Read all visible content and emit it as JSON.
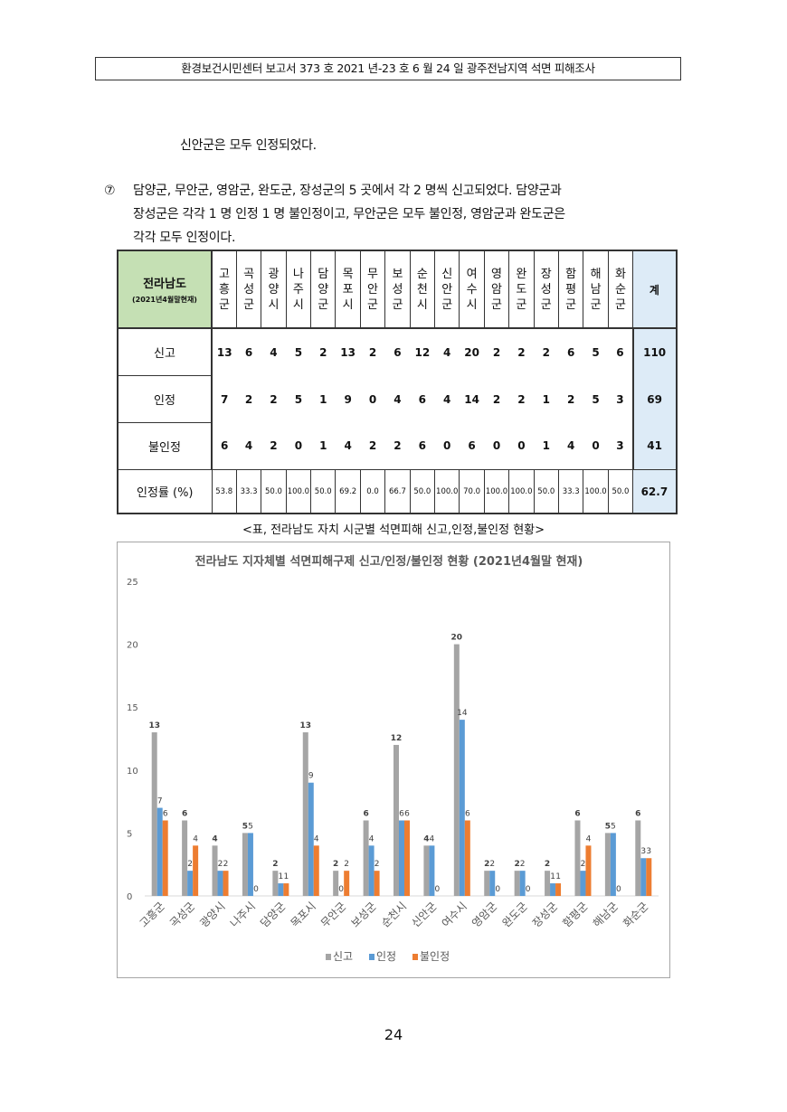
{
  "header": "환경보건시민센터 보고서 373 호 2021 년-23 호 6 월 24 일 광주전남지역 석면 피해조사",
  "intro_line": "신안군은 모두 인정되었다.",
  "paragraph": {
    "number": "⑦",
    "lines": [
      "담양군, 무안군, 영암군, 완도군, 장성군의 5 곳에서 각 2 명씩 신고되었다. 담양군과",
      "장성군은 각각 1 명 인정 1 명 불인정이고, 무안군은 모두 불인정, 영암군과 완도군은",
      "각각 모두 인정이다."
    ]
  },
  "table": {
    "corner_title": "전라남도",
    "corner_sub": "(2021년4월말현재)",
    "columns": [
      [
        "고",
        "흥",
        "군"
      ],
      [
        "곡",
        "성",
        "군"
      ],
      [
        "광",
        "양",
        "시"
      ],
      [
        "나",
        "주",
        "시"
      ],
      [
        "담",
        "양",
        "군"
      ],
      [
        "목",
        "포",
        "시"
      ],
      [
        "무",
        "안",
        "군"
      ],
      [
        "보",
        "성",
        "군"
      ],
      [
        "순",
        "천",
        "시"
      ],
      [
        "신",
        "안",
        "군"
      ],
      [
        "여",
        "수",
        "시"
      ],
      [
        "영",
        "암",
        "군"
      ],
      [
        "완",
        "도",
        "군"
      ],
      [
        "장",
        "성",
        "군"
      ],
      [
        "함",
        "평",
        "군"
      ],
      [
        "해",
        "남",
        "군"
      ],
      [
        "화",
        "순",
        "군"
      ]
    ],
    "total_label": "계",
    "rows": [
      {
        "label": "신고",
        "values": [
          "13",
          "6",
          "4",
          "5",
          "2",
          "13",
          "2",
          "6",
          "12",
          "4",
          "20",
          "2",
          "2",
          "2",
          "6",
          "5",
          "6"
        ],
        "total": "110"
      },
      {
        "label": "인정",
        "values": [
          "7",
          "2",
          "2",
          "5",
          "1",
          "9",
          "0",
          "4",
          "6",
          "4",
          "14",
          "2",
          "2",
          "1",
          "2",
          "5",
          "3"
        ],
        "total": "69"
      },
      {
        "label": "불인정",
        "values": [
          "6",
          "4",
          "2",
          "0",
          "1",
          "4",
          "2",
          "2",
          "6",
          "0",
          "6",
          "0",
          "0",
          "1",
          "4",
          "0",
          "3"
        ],
        "total": "41"
      },
      {
        "label": "인정률 (%)",
        "values": [
          "53.8",
          "33.3",
          "50.0",
          "100.0",
          "50.0",
          "69.2",
          "0.0",
          "66.7",
          "50.0",
          "100.0",
          "70.0",
          "100.0",
          "100.0",
          "50.0",
          "33.3",
          "100.0",
          "50.0"
        ],
        "total": "62.7"
      }
    ],
    "caption": "<표, 전라남도 자치 시군별 석면피해 신고,인정,불인정 현황>"
  },
  "chart_data": {
    "type": "bar",
    "title": "전라남도 지자체별 석면피해구제 신고/인정/불인정 현황 (2021년4월말 현재)",
    "categories": [
      "고흥군",
      "곡성군",
      "광양시",
      "나주시",
      "담양군",
      "목포시",
      "무안군",
      "보성군",
      "순천시",
      "신안군",
      "여수시",
      "영암군",
      "완도군",
      "장성군",
      "함평군",
      "해남군",
      "화순군"
    ],
    "series": [
      {
        "name": "신고",
        "color": "#a5a5a5",
        "values": [
          13,
          6,
          4,
          5,
          2,
          13,
          2,
          6,
          12,
          4,
          20,
          2,
          2,
          2,
          6,
          5,
          6
        ]
      },
      {
        "name": "인정",
        "color": "#5b9bd5",
        "values": [
          7,
          2,
          2,
          5,
          1,
          9,
          0,
          4,
          6,
          4,
          14,
          2,
          2,
          1,
          2,
          5,
          3
        ]
      },
      {
        "name": "불인정",
        "color": "#ed7d31",
        "values": [
          6,
          4,
          2,
          0,
          1,
          4,
          2,
          2,
          6,
          0,
          6,
          0,
          0,
          1,
          4,
          0,
          3
        ]
      }
    ],
    "ylim": [
      0,
      25
    ],
    "yticks": [
      0,
      5,
      10,
      15,
      20,
      25
    ],
    "grid": false,
    "legend": "bottom"
  },
  "page_number": "24"
}
